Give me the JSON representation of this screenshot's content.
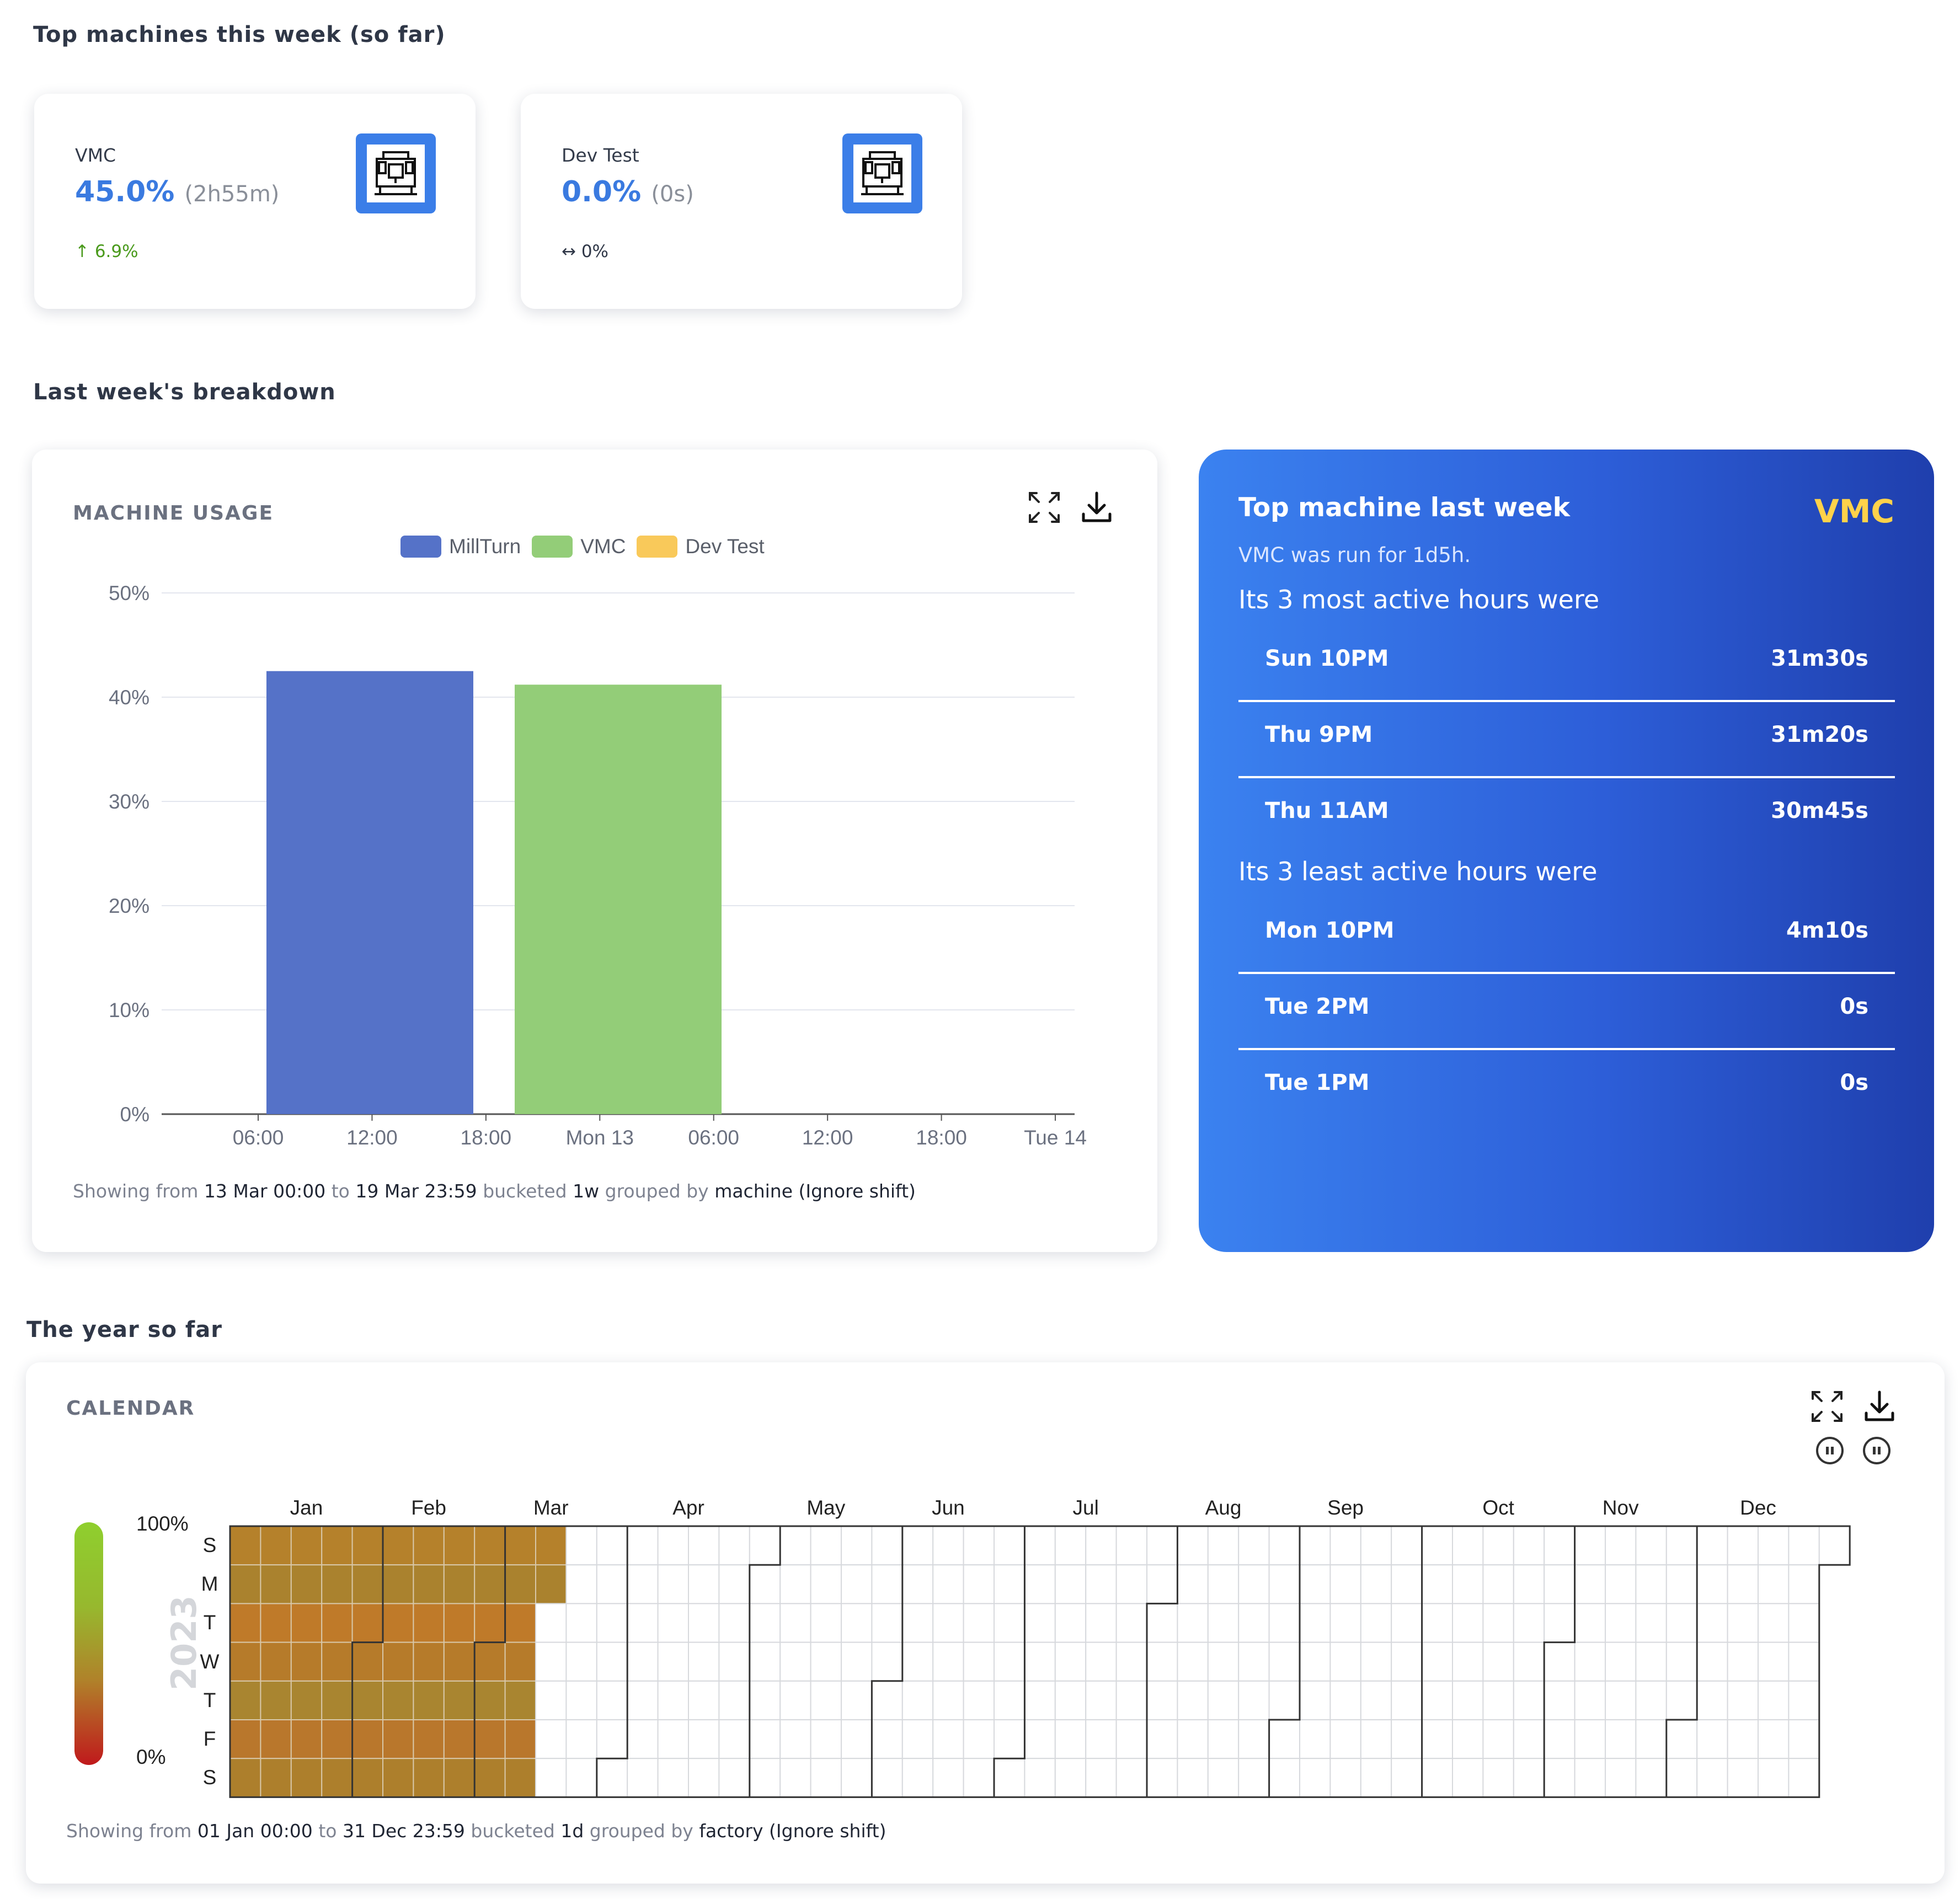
{
  "sections": {
    "this_week": "Top machines this week (so far)",
    "last_week": "Last week's breakdown",
    "year": "The year so far"
  },
  "top_machines": [
    {
      "name": "VMC",
      "percent": "45.0%",
      "duration": "(2h55m)",
      "change": "↑ 6.9%",
      "icon": "machine-icon"
    },
    {
      "name": "Dev Test",
      "percent": "0.0%",
      "duration": "(0s)",
      "change": "↔ 0%",
      "icon": "machine-icon"
    }
  ],
  "machine_usage": {
    "title": "MACHINE USAGE",
    "tools": {
      "expand_icon": "expand-icon",
      "download_icon": "download-icon"
    },
    "footer": {
      "prefix": "Showing from",
      "from": "13 Mar 00:00",
      "to_word": "to",
      "to": "19 Mar 23:59",
      "bucketed_word": "bucketed",
      "bucket": "1w",
      "grouped_word": "grouped by",
      "group": "machine (Ignore shift)"
    }
  },
  "chart_data": {
    "type": "bar",
    "title": "",
    "xlabel": "",
    "ylabel": "",
    "ylim": [
      0,
      50
    ],
    "yticks": [
      "0%",
      "10%",
      "20%",
      "30%",
      "40%",
      "50%"
    ],
    "xticks": [
      "06:00",
      "12:00",
      "18:00",
      "Mon 13",
      "06:00",
      "12:00",
      "18:00",
      "Tue 14"
    ],
    "legend_position": "top",
    "grid": true,
    "series": [
      {
        "name": "MillTurn",
        "color": "#5572c8",
        "values": [
          42.5
        ]
      },
      {
        "name": "VMC",
        "color": "#93cd78",
        "values": [
          41.2
        ]
      },
      {
        "name": "Dev Test",
        "color": "#f9c95a",
        "values": [
          0
        ]
      }
    ]
  },
  "insight": {
    "title": "Top machine last week",
    "machine": "VMC",
    "summary": "VMC was run for 1d5h.",
    "most_label": "Its 3 most active hours were",
    "most": [
      {
        "hour": "Sun 10PM",
        "time": "31m30s"
      },
      {
        "hour": "Thu 9PM",
        "time": "31m20s"
      },
      {
        "hour": "Thu 11AM",
        "time": "30m45s"
      }
    ],
    "least_label": "Its 3 least active hours were",
    "least": [
      {
        "hour": "Mon 10PM",
        "time": "4m10s"
      },
      {
        "hour": "Tue 2PM",
        "time": "0s"
      },
      {
        "hour": "Tue 1PM",
        "time": "0s"
      }
    ]
  },
  "calendar": {
    "title": "CALENDAR",
    "year": "2023",
    "scale_max": "100%",
    "scale_min": "0%",
    "months": [
      "Jan",
      "Feb",
      "Mar",
      "Apr",
      "May",
      "Jun",
      "Jul",
      "Aug",
      "Sep",
      "Oct",
      "Nov",
      "Dec"
    ],
    "days": [
      "S",
      "M",
      "T",
      "W",
      "T",
      "F",
      "S"
    ],
    "filled_through": "2023-03-13",
    "colors": {
      "high": "#8fcf2e",
      "mid": "#b0822a",
      "low": "#c0191c"
    },
    "footer": {
      "prefix": "Showing from",
      "from": "01 Jan 00:00",
      "to_word": "to",
      "to": "31 Dec 23:59",
      "bucketed_word": "bucketed",
      "bucket": "1d",
      "grouped_word": "grouped by",
      "group": "factory (Ignore shift)"
    }
  }
}
